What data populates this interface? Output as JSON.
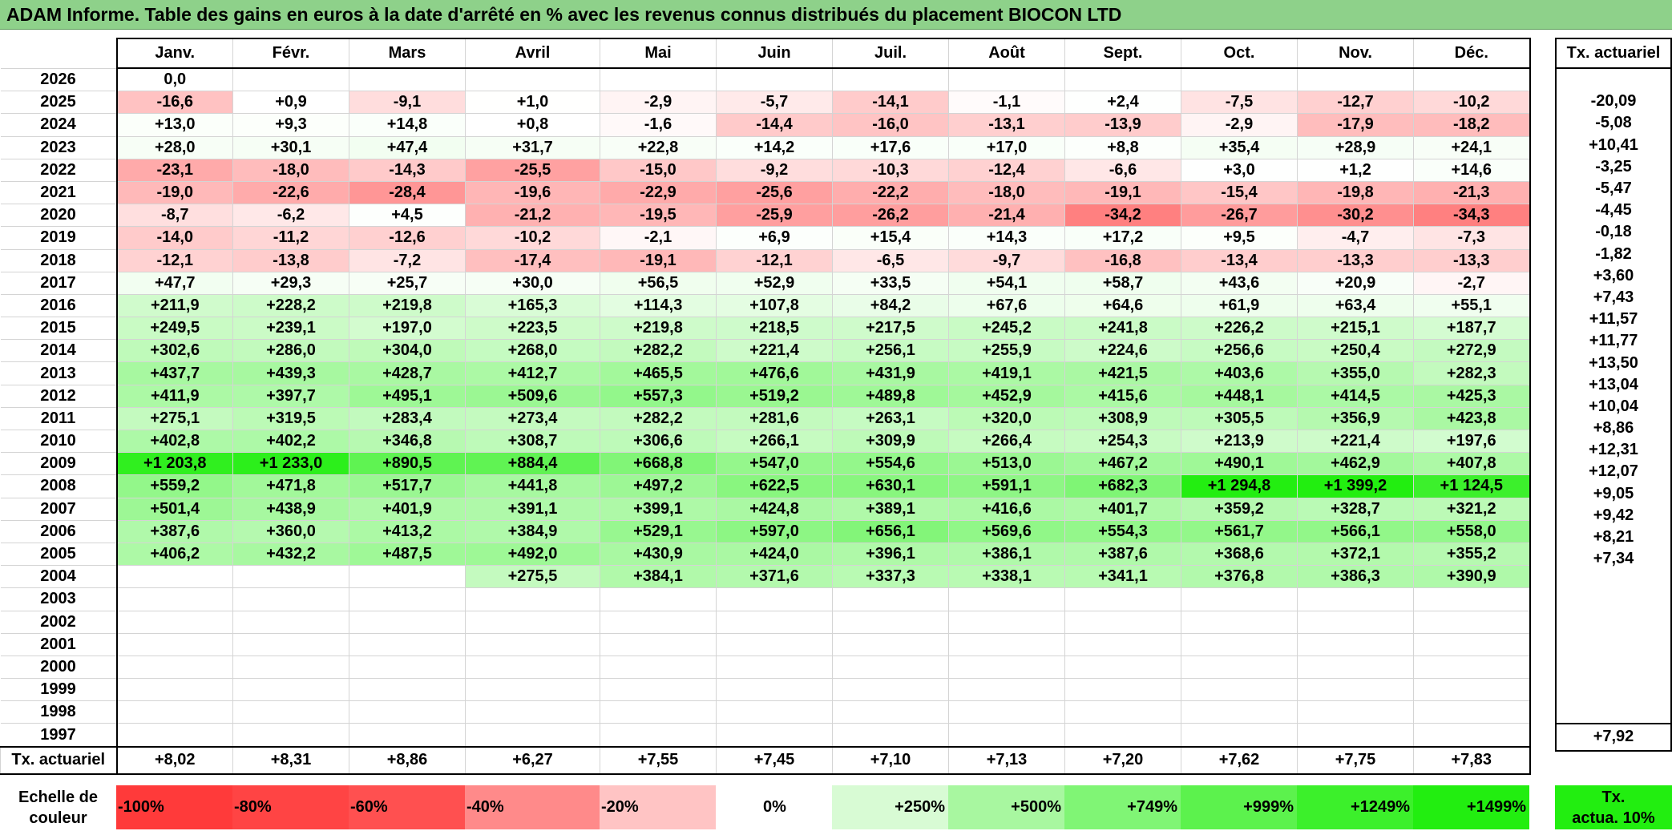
{
  "title": "ADAM Informe. Table des gains en euros à la date d'arrêté en % avec les revenus connus distribués du placement BIOCON LTD",
  "months": [
    "Janv.",
    "Févr.",
    "Mars",
    "Avril",
    "Mai",
    "Juin",
    "Juil.",
    "Août",
    "Sept.",
    "Oct.",
    "Nov.",
    "Déc."
  ],
  "side_header": "Tx. actuariel",
  "rows": [
    {
      "year": "2026",
      "values": [
        "0,0",
        "",
        "",
        "",
        "",
        "",
        "",
        "",
        "",
        "",
        "",
        ""
      ],
      "rate": ""
    },
    {
      "year": "2025",
      "values": [
        "-16,6",
        "+0,9",
        "-9,1",
        "+1,0",
        "-2,9",
        "-5,7",
        "-14,1",
        "-1,1",
        "+2,4",
        "-7,5",
        "-12,7",
        "-10,2"
      ],
      "rate": "-20,09"
    },
    {
      "year": "2024",
      "values": [
        "+13,0",
        "+9,3",
        "+14,8",
        "+0,8",
        "-1,6",
        "-14,4",
        "-16,0",
        "-13,1",
        "-13,9",
        "-2,9",
        "-17,9",
        "-18,2"
      ],
      "rate": "-5,08"
    },
    {
      "year": "2023",
      "values": [
        "+28,0",
        "+30,1",
        "+47,4",
        "+31,7",
        "+22,8",
        "+14,2",
        "+17,6",
        "+17,0",
        "+8,8",
        "+35,4",
        "+28,9",
        "+24,1"
      ],
      "rate": "+10,41"
    },
    {
      "year": "2022",
      "values": [
        "-23,1",
        "-18,0",
        "-14,3",
        "-25,5",
        "-15,0",
        "-9,2",
        "-10,3",
        "-12,4",
        "-6,6",
        "+3,0",
        "+1,2",
        "+14,6"
      ],
      "rate": "-3,25"
    },
    {
      "year": "2021",
      "values": [
        "-19,0",
        "-22,6",
        "-28,4",
        "-19,6",
        "-22,9",
        "-25,6",
        "-22,2",
        "-18,0",
        "-19,1",
        "-15,4",
        "-19,8",
        "-21,3"
      ],
      "rate": "-5,47"
    },
    {
      "year": "2020",
      "values": [
        "-8,7",
        "-6,2",
        "+4,5",
        "-21,2",
        "-19,5",
        "-25,9",
        "-26,2",
        "-21,4",
        "-34,2",
        "-26,7",
        "-30,2",
        "-34,3"
      ],
      "rate": "-4,45"
    },
    {
      "year": "2019",
      "values": [
        "-14,0",
        "-11,2",
        "-12,6",
        "-10,2",
        "-2,1",
        "+6,9",
        "+15,4",
        "+14,3",
        "+17,2",
        "+9,5",
        "-4,7",
        "-7,3"
      ],
      "rate": "-0,18"
    },
    {
      "year": "2018",
      "values": [
        "-12,1",
        "-13,8",
        "-7,2",
        "-17,4",
        "-19,1",
        "-12,1",
        "-6,5",
        "-9,7",
        "-16,8",
        "-13,4",
        "-13,3",
        "-13,3"
      ],
      "rate": "-1,82"
    },
    {
      "year": "2017",
      "values": [
        "+47,7",
        "+29,3",
        "+25,7",
        "+30,0",
        "+56,5",
        "+52,9",
        "+33,5",
        "+54,1",
        "+58,7",
        "+43,6",
        "+20,9",
        "-2,7"
      ],
      "rate": "+3,60"
    },
    {
      "year": "2016",
      "values": [
        "+211,9",
        "+228,2",
        "+219,8",
        "+165,3",
        "+114,3",
        "+107,8",
        "+84,2",
        "+67,6",
        "+64,6",
        "+61,9",
        "+63,4",
        "+55,1"
      ],
      "rate": "+7,43"
    },
    {
      "year": "2015",
      "values": [
        "+249,5",
        "+239,1",
        "+197,0",
        "+223,5",
        "+219,8",
        "+218,5",
        "+217,5",
        "+245,2",
        "+241,8",
        "+226,2",
        "+215,1",
        "+187,7"
      ],
      "rate": "+11,57"
    },
    {
      "year": "2014",
      "values": [
        "+302,6",
        "+286,0",
        "+304,0",
        "+268,0",
        "+282,2",
        "+221,4",
        "+256,1",
        "+255,9",
        "+224,6",
        "+256,6",
        "+250,4",
        "+272,9"
      ],
      "rate": "+11,77"
    },
    {
      "year": "2013",
      "values": [
        "+437,7",
        "+439,3",
        "+428,7",
        "+412,7",
        "+465,5",
        "+476,6",
        "+431,9",
        "+419,1",
        "+421,5",
        "+403,6",
        "+355,0",
        "+282,3"
      ],
      "rate": "+13,50"
    },
    {
      "year": "2012",
      "values": [
        "+411,9",
        "+397,7",
        "+495,1",
        "+509,6",
        "+557,3",
        "+519,2",
        "+489,8",
        "+452,9",
        "+415,6",
        "+448,1",
        "+414,5",
        "+425,3"
      ],
      "rate": "+13,04"
    },
    {
      "year": "2011",
      "values": [
        "+275,1",
        "+319,5",
        "+283,4",
        "+273,4",
        "+282,2",
        "+281,6",
        "+263,1",
        "+320,0",
        "+308,9",
        "+305,5",
        "+356,9",
        "+423,8"
      ],
      "rate": "+10,04"
    },
    {
      "year": "2010",
      "values": [
        "+402,8",
        "+402,2",
        "+346,8",
        "+308,7",
        "+306,6",
        "+266,1",
        "+309,9",
        "+266,4",
        "+254,3",
        "+213,9",
        "+221,4",
        "+197,6"
      ],
      "rate": "+8,86"
    },
    {
      "year": "2009",
      "values": [
        "+1 203,8",
        "+1 233,0",
        "+890,5",
        "+884,4",
        "+668,8",
        "+547,0",
        "+554,6",
        "+513,0",
        "+467,2",
        "+490,1",
        "+462,9",
        "+407,8"
      ],
      "rate": "+12,31"
    },
    {
      "year": "2008",
      "values": [
        "+559,2",
        "+471,8",
        "+517,7",
        "+441,8",
        "+497,2",
        "+622,5",
        "+630,1",
        "+591,1",
        "+682,3",
        "+1 294,8",
        "+1 399,2",
        "+1 124,5"
      ],
      "rate": "+12,07"
    },
    {
      "year": "2007",
      "values": [
        "+501,4",
        "+438,9",
        "+401,9",
        "+391,1",
        "+399,1",
        "+424,8",
        "+389,1",
        "+416,6",
        "+401,7",
        "+359,2",
        "+328,7",
        "+321,2"
      ],
      "rate": "+9,05"
    },
    {
      "year": "2006",
      "values": [
        "+387,6",
        "+360,0",
        "+413,2",
        "+384,9",
        "+529,1",
        "+597,0",
        "+656,1",
        "+569,6",
        "+554,3",
        "+561,7",
        "+566,1",
        "+558,0"
      ],
      "rate": "+9,42"
    },
    {
      "year": "2005",
      "values": [
        "+406,2",
        "+432,2",
        "+487,5",
        "+492,0",
        "+430,9",
        "+424,0",
        "+396,1",
        "+386,1",
        "+387,6",
        "+368,6",
        "+372,1",
        "+355,2"
      ],
      "rate": "+8,21"
    },
    {
      "year": "2004",
      "values": [
        "",
        "",
        "",
        "+275,5",
        "+384,1",
        "+371,6",
        "+337,3",
        "+338,1",
        "+341,1",
        "+376,8",
        "+386,3",
        "+390,9"
      ],
      "rate": "+7,34"
    },
    {
      "year": "2003",
      "values": [
        "",
        "",
        "",
        "",
        "",
        "",
        "",
        "",
        "",
        "",
        "",
        ""
      ],
      "rate": ""
    },
    {
      "year": "2002",
      "values": [
        "",
        "",
        "",
        "",
        "",
        "",
        "",
        "",
        "",
        "",
        "",
        ""
      ],
      "rate": ""
    },
    {
      "year": "2001",
      "values": [
        "",
        "",
        "",
        "",
        "",
        "",
        "",
        "",
        "",
        "",
        "",
        ""
      ],
      "rate": ""
    },
    {
      "year": "2000",
      "values": [
        "",
        "",
        "",
        "",
        "",
        "",
        "",
        "",
        "",
        "",
        "",
        ""
      ],
      "rate": ""
    },
    {
      "year": "1999",
      "values": [
        "",
        "",
        "",
        "",
        "",
        "",
        "",
        "",
        "",
        "",
        "",
        ""
      ],
      "rate": ""
    },
    {
      "year": "1998",
      "values": [
        "",
        "",
        "",
        "",
        "",
        "",
        "",
        "",
        "",
        "",
        "",
        ""
      ],
      "rate": ""
    },
    {
      "year": "1997",
      "values": [
        "",
        "",
        "",
        "",
        "",
        "",
        "",
        "",
        "",
        "",
        "",
        ""
      ],
      "rate": ""
    }
  ],
  "footer": {
    "label": "Tx. actuariel",
    "values": [
      "+8,02",
      "+8,31",
      "+8,86",
      "+6,27",
      "+7,55",
      "+7,45",
      "+7,10",
      "+7,13",
      "+7,20",
      "+7,62",
      "+7,75",
      "+7,83"
    ],
    "total": "+7,92"
  },
  "legend": {
    "label_line1": "Echelle de",
    "label_line2": "couleur",
    "stops": [
      {
        "label": "-100%",
        "color": "#ff3a3a"
      },
      {
        "label": "-80%",
        "color": "#ff4444"
      },
      {
        "label": "-60%",
        "color": "#ff5050"
      },
      {
        "label": "-40%",
        "color": "#ff8a8a"
      },
      {
        "label": "-20%",
        "color": "#ffc4c4"
      },
      {
        "label": "0%",
        "color": "#ffffff"
      },
      {
        "label": "+250%",
        "color": "#d8fbd4"
      },
      {
        "label": "+500%",
        "color": "#a8f7a0"
      },
      {
        "label": "+749%",
        "color": "#80f575"
      },
      {
        "label": "+999%",
        "color": "#5cf24d"
      },
      {
        "label": "+1249%",
        "color": "#3cf02b"
      },
      {
        "label": "+1499%",
        "color": "#22ee10"
      }
    ],
    "rate_label_line1": "Tx.",
    "rate_label_line2": "actua. 10%",
    "rate_color": "#22ee10"
  }
}
